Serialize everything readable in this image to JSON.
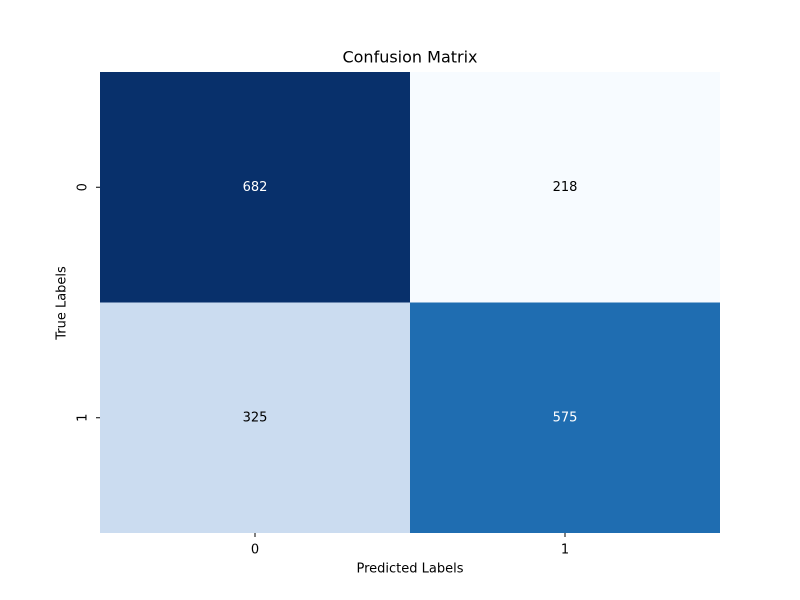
{
  "chart_data": {
    "type": "heatmap",
    "title": "Confusion Matrix",
    "x_label": "Predicted Labels",
    "y_label": "True Labels",
    "x_categories": [
      "0",
      "1"
    ],
    "y_categories": [
      "0",
      "1"
    ],
    "values": [
      [
        682,
        218
      ],
      [
        325,
        575
      ]
    ],
    "colors": [
      [
        "#08306b",
        "#f7fbff"
      ],
      [
        "#cbdcf0",
        "#1f6db1"
      ]
    ]
  }
}
